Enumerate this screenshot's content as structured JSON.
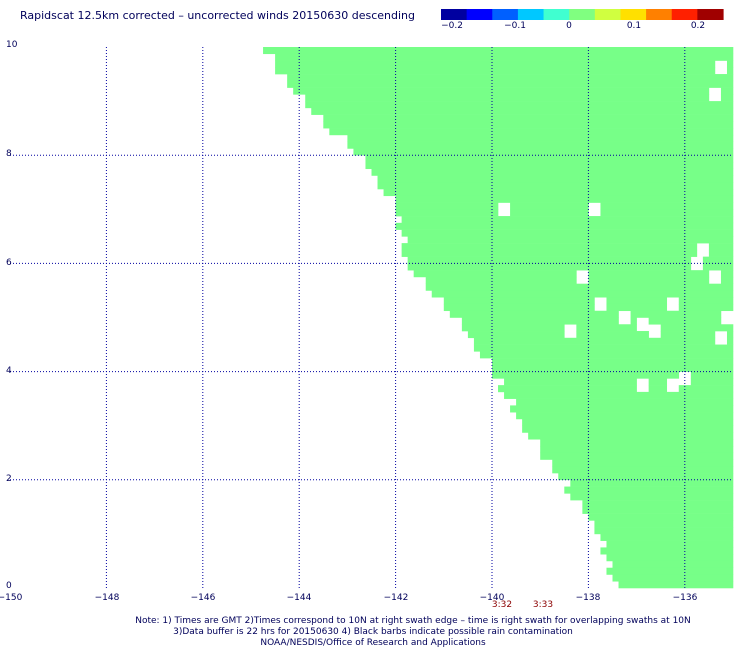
{
  "title": "Rapidscat 12.5km corrected – uncorrected winds 20150630 descending",
  "colorbar": {
    "ticks": [
      "−0.2",
      "−0.1",
      "0",
      "0.1",
      "0.2"
    ],
    "colors": [
      "#0000a0",
      "#0000ff",
      "#0060ff",
      "#00c8ff",
      "#40ffd0",
      "#80ff80",
      "#d0ff40",
      "#ffe000",
      "#ff8000",
      "#ff2000",
      "#a00000"
    ]
  },
  "chart_data": {
    "type": "heatmap",
    "xlim": [
      -150,
      -135
    ],
    "ylim": [
      0,
      10
    ],
    "x_ticks": [
      "−150",
      "−148",
      "−146",
      "−144",
      "−142",
      "−140",
      "−138",
      "−136"
    ],
    "y_ticks": [
      "0",
      "2",
      "4",
      "6",
      "8",
      "10"
    ],
    "grid": true,
    "cell_size_deg": 0.125,
    "fill_color": "#77ff88",
    "swath_left_edge": [
      [
        10.0,
        -144.8
      ],
      [
        9.5,
        -144.4
      ],
      [
        8.5,
        -143.4
      ],
      [
        8.0,
        -142.8
      ],
      [
        7.0,
        -142.0
      ],
      [
        6.0,
        -141.8
      ],
      [
        5.0,
        -140.8
      ],
      [
        4.0,
        -140.0
      ],
      [
        3.0,
        -139.4
      ],
      [
        2.0,
        -138.6
      ],
      [
        1.0,
        -137.8
      ],
      [
        0.0,
        -137.5
      ]
    ],
    "gaps": [
      [
        -139.7,
        7.0
      ],
      [
        -137.9,
        7.0
      ],
      [
        -138.1,
        5.8
      ],
      [
        -137.7,
        5.2
      ],
      [
        -137.3,
        5.0
      ],
      [
        -136.6,
        4.8
      ],
      [
        -136.2,
        5.3
      ],
      [
        -135.4,
        5.7
      ],
      [
        -135.8,
        6.0
      ],
      [
        -136.9,
        3.7
      ],
      [
        -136.3,
        3.8
      ],
      [
        -136.0,
        3.9
      ],
      [
        -138.4,
        4.7
      ],
      [
        -135.3,
        9.6
      ],
      [
        -135.4,
        9.1
      ],
      [
        -135.6,
        6.3
      ],
      [
        -135.2,
        4.6
      ],
      [
        -136.9,
        4.9
      ],
      [
        -135.1,
        5.0
      ]
    ]
  },
  "time_labels": [
    {
      "text": "3:32",
      "lon": -139.75
    },
    {
      "text": "3:33",
      "lon": -138.8
    }
  ],
  "notes": [
    "Note: 1) Times are GMT 2)Times correspond to 10N at right swath edge – time is right swath for overlapping swaths at 10N",
    "3)Data buffer is 22 hrs for 20150630 4) Black barbs indicate possible rain contamination",
    "NOAA/NESDIS/Office of Research and Applications"
  ]
}
